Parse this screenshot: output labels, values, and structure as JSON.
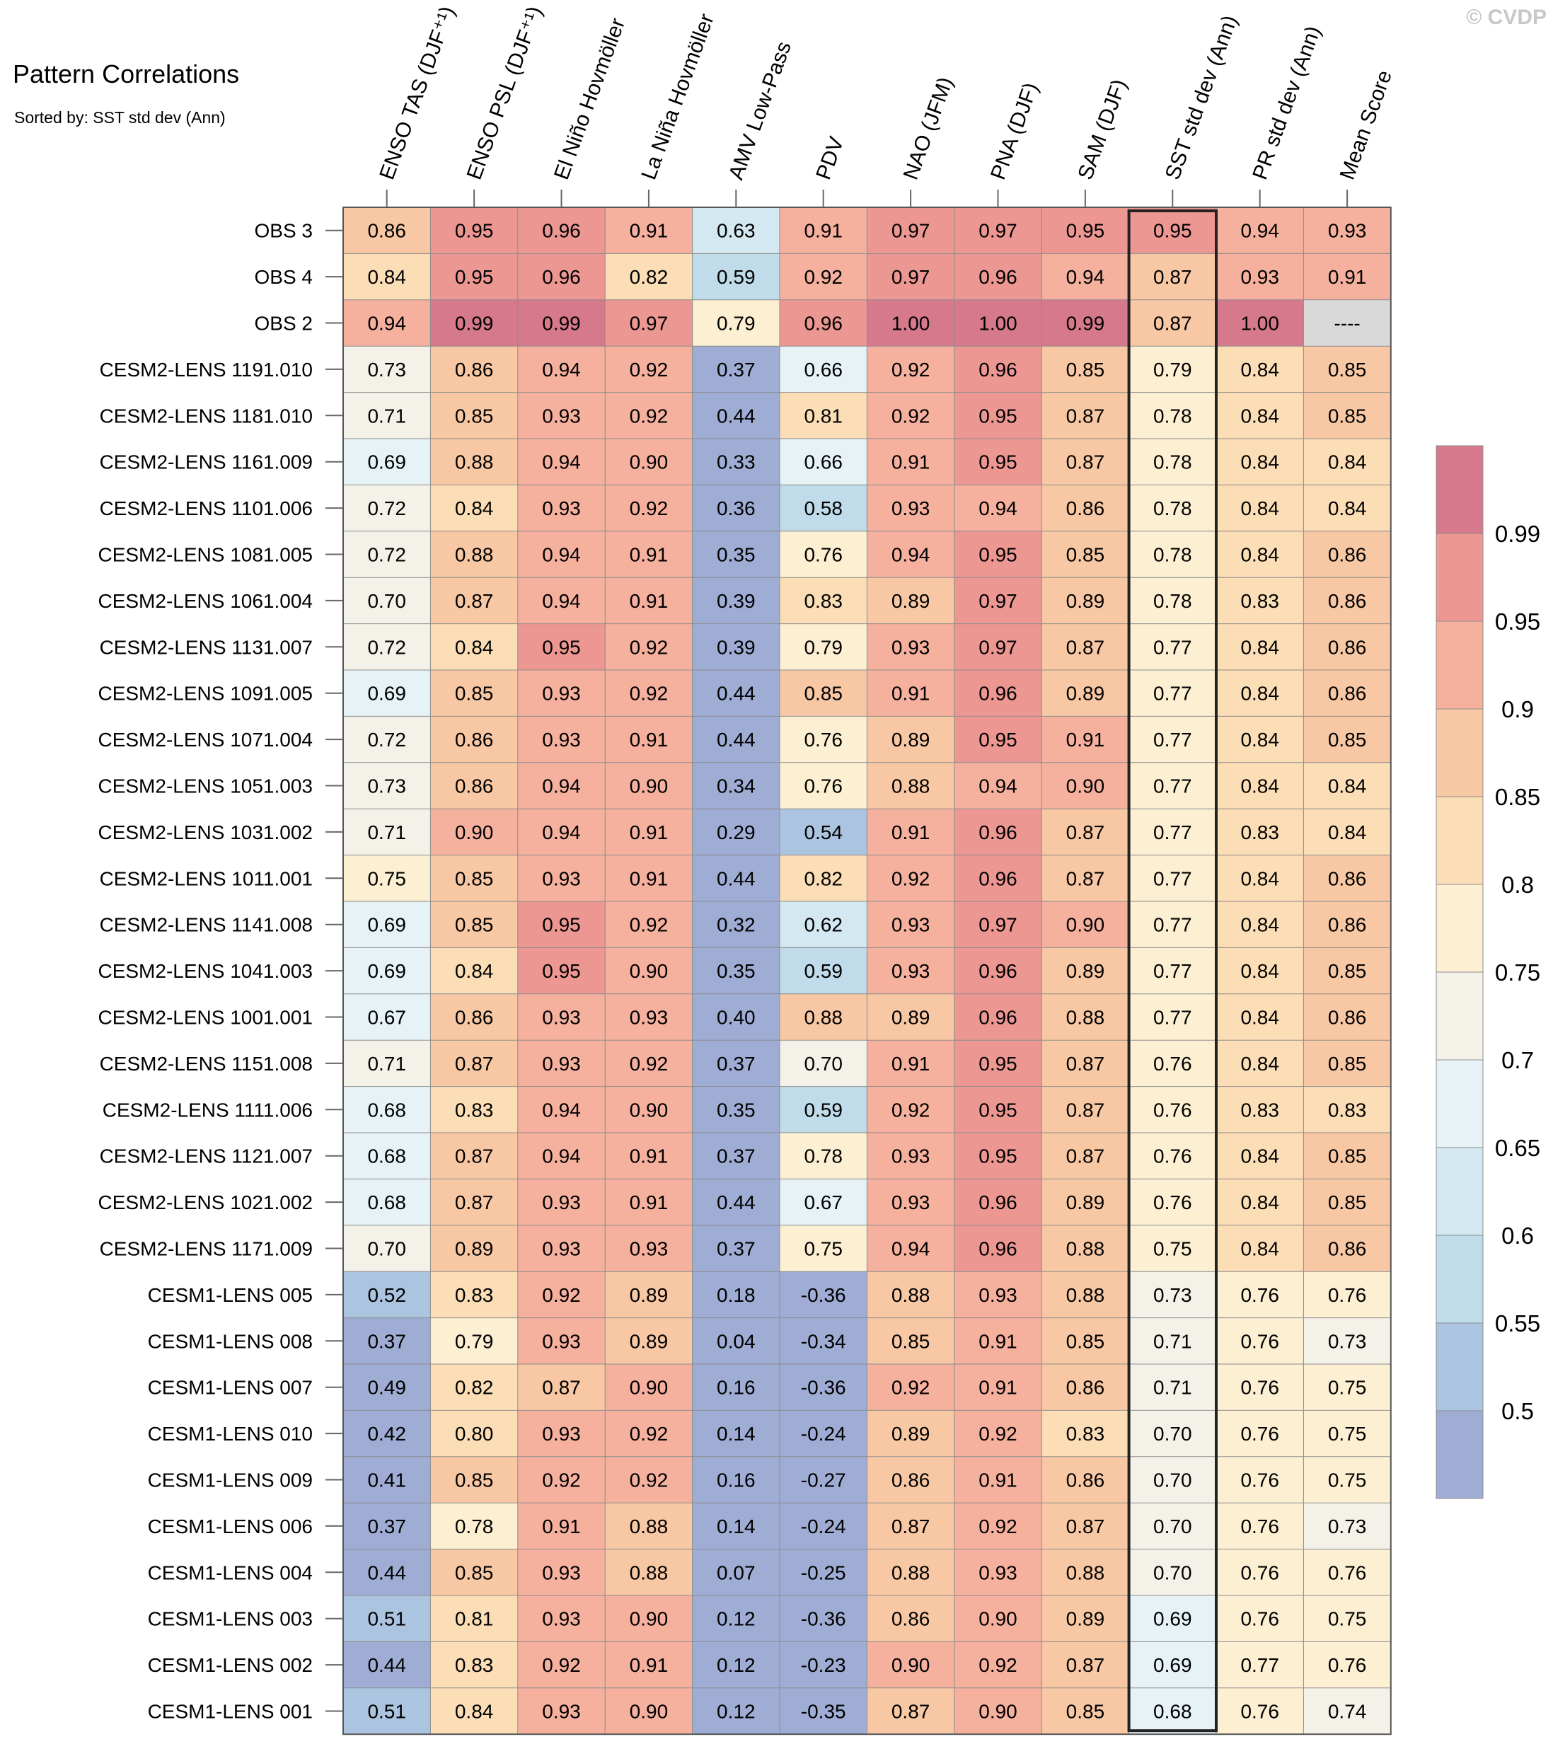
{
  "chart_data": {
    "type": "heatmap",
    "title": "Pattern Correlations",
    "subtitle": "Sorted by: SST std dev (Ann)",
    "credit": "© CVDP",
    "columns": [
      "ENSO TAS (DJF⁺¹)",
      "ENSO PSL (DJF⁺¹)",
      "El Niño Hovmöller",
      "La Niña Hovmöller",
      "AMV Low-Pass",
      "PDV",
      "NAO (JFM)",
      "PNA (DJF)",
      "SAM (DJF)",
      "SST std dev (Ann)",
      "PR std dev (Ann)",
      "Mean Score"
    ],
    "highlighted_column": "SST std dev (Ann)",
    "rows": [
      {
        "label": "OBS 3",
        "values": [
          "0.86",
          "0.95",
          "0.96",
          "0.91",
          "0.63",
          "0.91",
          "0.97",
          "0.97",
          "0.95",
          "0.95",
          "0.94",
          "0.93"
        ]
      },
      {
        "label": "OBS 4",
        "values": [
          "0.84",
          "0.95",
          "0.96",
          "0.82",
          "0.59",
          "0.92",
          "0.97",
          "0.96",
          "0.94",
          "0.87",
          "0.93",
          "0.91"
        ]
      },
      {
        "label": "OBS 2",
        "values": [
          "0.94",
          "0.99",
          "0.99",
          "0.97",
          "0.79",
          "0.96",
          "1.00",
          "1.00",
          "0.99",
          "0.87",
          "1.00",
          "----"
        ]
      },
      {
        "label": "CESM2-LENS 1191.010",
        "values": [
          "0.73",
          "0.86",
          "0.94",
          "0.92",
          "0.37",
          "0.66",
          "0.92",
          "0.96",
          "0.85",
          "0.79",
          "0.84",
          "0.85"
        ]
      },
      {
        "label": "CESM2-LENS 1181.010",
        "values": [
          "0.71",
          "0.85",
          "0.93",
          "0.92",
          "0.44",
          "0.81",
          "0.92",
          "0.95",
          "0.87",
          "0.78",
          "0.84",
          "0.85"
        ]
      },
      {
        "label": "CESM2-LENS 1161.009",
        "values": [
          "0.69",
          "0.88",
          "0.94",
          "0.90",
          "0.33",
          "0.66",
          "0.91",
          "0.95",
          "0.87",
          "0.78",
          "0.84",
          "0.84"
        ]
      },
      {
        "label": "CESM2-LENS 1101.006",
        "values": [
          "0.72",
          "0.84",
          "0.93",
          "0.92",
          "0.36",
          "0.58",
          "0.93",
          "0.94",
          "0.86",
          "0.78",
          "0.84",
          "0.84"
        ]
      },
      {
        "label": "CESM2-LENS 1081.005",
        "values": [
          "0.72",
          "0.88",
          "0.94",
          "0.91",
          "0.35",
          "0.76",
          "0.94",
          "0.95",
          "0.85",
          "0.78",
          "0.84",
          "0.86"
        ]
      },
      {
        "label": "CESM2-LENS 1061.004",
        "values": [
          "0.70",
          "0.87",
          "0.94",
          "0.91",
          "0.39",
          "0.83",
          "0.89",
          "0.97",
          "0.89",
          "0.78",
          "0.83",
          "0.86"
        ]
      },
      {
        "label": "CESM2-LENS 1131.007",
        "values": [
          "0.72",
          "0.84",
          "0.95",
          "0.92",
          "0.39",
          "0.79",
          "0.93",
          "0.97",
          "0.87",
          "0.77",
          "0.84",
          "0.86"
        ]
      },
      {
        "label": "CESM2-LENS 1091.005",
        "values": [
          "0.69",
          "0.85",
          "0.93",
          "0.92",
          "0.44",
          "0.85",
          "0.91",
          "0.96",
          "0.89",
          "0.77",
          "0.84",
          "0.86"
        ]
      },
      {
        "label": "CESM2-LENS 1071.004",
        "values": [
          "0.72",
          "0.86",
          "0.93",
          "0.91",
          "0.44",
          "0.76",
          "0.89",
          "0.95",
          "0.91",
          "0.77",
          "0.84",
          "0.85"
        ]
      },
      {
        "label": "CESM2-LENS 1051.003",
        "values": [
          "0.73",
          "0.86",
          "0.94",
          "0.90",
          "0.34",
          "0.76",
          "0.88",
          "0.94",
          "0.90",
          "0.77",
          "0.84",
          "0.84"
        ]
      },
      {
        "label": "CESM2-LENS 1031.002",
        "values": [
          "0.71",
          "0.90",
          "0.94",
          "0.91",
          "0.29",
          "0.54",
          "0.91",
          "0.96",
          "0.87",
          "0.77",
          "0.83",
          "0.84"
        ]
      },
      {
        "label": "CESM2-LENS 1011.001",
        "values": [
          "0.75",
          "0.85",
          "0.93",
          "0.91",
          "0.44",
          "0.82",
          "0.92",
          "0.96",
          "0.87",
          "0.77",
          "0.84",
          "0.86"
        ]
      },
      {
        "label": "CESM2-LENS 1141.008",
        "values": [
          "0.69",
          "0.85",
          "0.95",
          "0.92",
          "0.32",
          "0.62",
          "0.93",
          "0.97",
          "0.90",
          "0.77",
          "0.84",
          "0.86"
        ]
      },
      {
        "label": "CESM2-LENS 1041.003",
        "values": [
          "0.69",
          "0.84",
          "0.95",
          "0.90",
          "0.35",
          "0.59",
          "0.93",
          "0.96",
          "0.89",
          "0.77",
          "0.84",
          "0.85"
        ]
      },
      {
        "label": "CESM2-LENS 1001.001",
        "values": [
          "0.67",
          "0.86",
          "0.93",
          "0.93",
          "0.40",
          "0.88",
          "0.89",
          "0.96",
          "0.88",
          "0.77",
          "0.84",
          "0.86"
        ]
      },
      {
        "label": "CESM2-LENS 1151.008",
        "values": [
          "0.71",
          "0.87",
          "0.93",
          "0.92",
          "0.37",
          "0.70",
          "0.91",
          "0.95",
          "0.87",
          "0.76",
          "0.84",
          "0.85"
        ]
      },
      {
        "label": "CESM2-LENS 1111.006",
        "values": [
          "0.68",
          "0.83",
          "0.94",
          "0.90",
          "0.35",
          "0.59",
          "0.92",
          "0.95",
          "0.87",
          "0.76",
          "0.83",
          "0.83"
        ]
      },
      {
        "label": "CESM2-LENS 1121.007",
        "values": [
          "0.68",
          "0.87",
          "0.94",
          "0.91",
          "0.37",
          "0.78",
          "0.93",
          "0.95",
          "0.87",
          "0.76",
          "0.84",
          "0.85"
        ]
      },
      {
        "label": "CESM2-LENS 1021.002",
        "values": [
          "0.68",
          "0.87",
          "0.93",
          "0.91",
          "0.44",
          "0.67",
          "0.93",
          "0.96",
          "0.89",
          "0.76",
          "0.84",
          "0.85"
        ]
      },
      {
        "label": "CESM2-LENS 1171.009",
        "values": [
          "0.70",
          "0.89",
          "0.93",
          "0.93",
          "0.37",
          "0.75",
          "0.94",
          "0.96",
          "0.88",
          "0.75",
          "0.84",
          "0.86"
        ]
      },
      {
        "label": "CESM1-LENS 005",
        "values": [
          "0.52",
          "0.83",
          "0.92",
          "0.89",
          "0.18",
          "-0.36",
          "0.88",
          "0.93",
          "0.88",
          "0.73",
          "0.76",
          "0.76"
        ]
      },
      {
        "label": "CESM1-LENS 008",
        "values": [
          "0.37",
          "0.79",
          "0.93",
          "0.89",
          "0.04",
          "-0.34",
          "0.85",
          "0.91",
          "0.85",
          "0.71",
          "0.76",
          "0.73"
        ]
      },
      {
        "label": "CESM1-LENS 007",
        "values": [
          "0.49",
          "0.82",
          "0.87",
          "0.90",
          "0.16",
          "-0.36",
          "0.92",
          "0.91",
          "0.86",
          "0.71",
          "0.76",
          "0.75"
        ]
      },
      {
        "label": "CESM1-LENS 010",
        "values": [
          "0.42",
          "0.80",
          "0.93",
          "0.92",
          "0.14",
          "-0.24",
          "0.89",
          "0.92",
          "0.83",
          "0.70",
          "0.76",
          "0.75"
        ]
      },
      {
        "label": "CESM1-LENS 009",
        "values": [
          "0.41",
          "0.85",
          "0.92",
          "0.92",
          "0.16",
          "-0.27",
          "0.86",
          "0.91",
          "0.86",
          "0.70",
          "0.76",
          "0.75"
        ]
      },
      {
        "label": "CESM1-LENS 006",
        "values": [
          "0.37",
          "0.78",
          "0.91",
          "0.88",
          "0.14",
          "-0.24",
          "0.87",
          "0.92",
          "0.87",
          "0.70",
          "0.76",
          "0.73"
        ]
      },
      {
        "label": "CESM1-LENS 004",
        "values": [
          "0.44",
          "0.85",
          "0.93",
          "0.88",
          "0.07",
          "-0.25",
          "0.88",
          "0.93",
          "0.88",
          "0.70",
          "0.76",
          "0.76"
        ]
      },
      {
        "label": "CESM1-LENS 003",
        "values": [
          "0.51",
          "0.81",
          "0.93",
          "0.90",
          "0.12",
          "-0.36",
          "0.86",
          "0.90",
          "0.89",
          "0.69",
          "0.76",
          "0.75"
        ]
      },
      {
        "label": "CESM1-LENS 002",
        "values": [
          "0.44",
          "0.83",
          "0.92",
          "0.91",
          "0.12",
          "-0.23",
          "0.90",
          "0.92",
          "0.87",
          "0.69",
          "0.77",
          "0.76"
        ]
      },
      {
        "label": "CESM1-LENS 001",
        "values": [
          "0.51",
          "0.84",
          "0.93",
          "0.90",
          "0.12",
          "-0.35",
          "0.87",
          "0.90",
          "0.85",
          "0.68",
          "0.76",
          "0.74"
        ]
      }
    ],
    "colorbar": {
      "levels": [
        "0.5",
        "0.55",
        "0.6",
        "0.65",
        "0.7",
        "0.75",
        "0.8",
        "0.85",
        "0.9",
        "0.95",
        "0.99"
      ],
      "colors": [
        "#9fadd5",
        "#abc5e0",
        "#c0dbe9",
        "#d3e8f0",
        "#e6f2f6",
        "#f4f2e8",
        "#fcefd2",
        "#fbddb6",
        "#f8c8a4",
        "#f5b09e",
        "#ed9793",
        "#d6798c"
      ]
    },
    "missing_color": "#d9d9d9"
  }
}
